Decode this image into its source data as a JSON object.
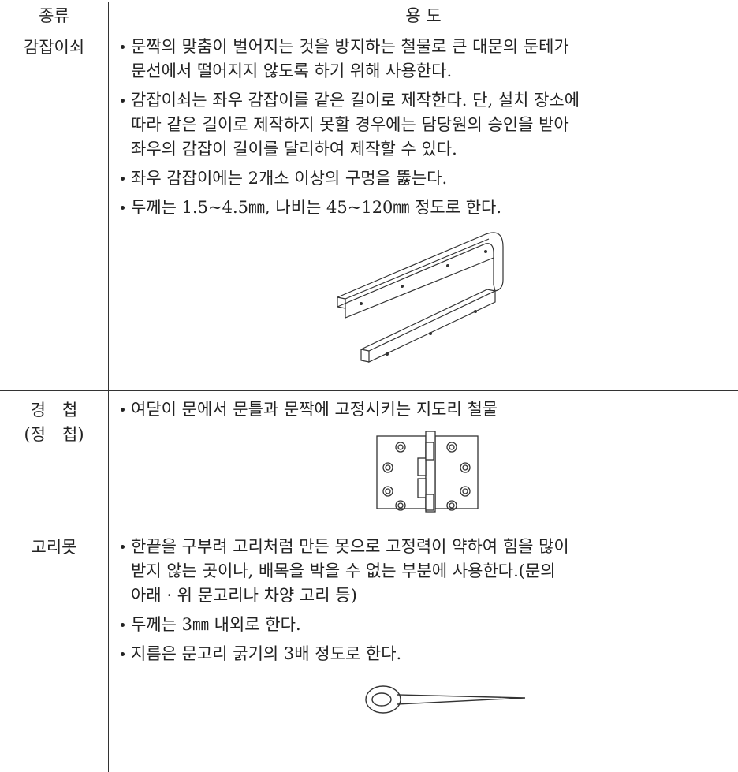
{
  "table": {
    "header": [
      "종류",
      "용 도"
    ],
    "rows": [
      {
        "type": [
          "감잡이쇠"
        ],
        "bullets": [
          [
            "문짝의 맞춤이 벌어지는 것을 방지하는 철물로 큰 대문의 둔테가",
            "문선에서 떨어지지 않도록 하기 위해 사용한다."
          ],
          [
            "감잡이쇠는 좌우 감잡이를 같은 길이로 제작한다. 단, 설치 장소에",
            "따라 같은 길이로 제작하지 못할 경우에는 담당원의 승인을 받아",
            "좌우의 감잡이 길이를 달리하여 제작할 수 있다."
          ],
          [
            "좌우 감잡이에는 2개소 이상의 구멍을 뚫는다."
          ],
          [
            "두께는 1.5~4.5㎜, 나비는 45~120㎜ 정도로 한다."
          ]
        ]
      },
      {
        "type": [
          "경　첩",
          "(정　첩)"
        ],
        "bullets": [
          [
            "여닫이 문에서 문틀과 문짝에 고정시키는 지도리 철물"
          ]
        ]
      },
      {
        "type": [
          "고리못"
        ],
        "bullets": [
          [
            "한끝을 구부려 고리처럼 만든 못으로 고정력이 약하여 힘을 많이",
            "받지 않는 곳이나, 배목을 박을 수 없는 부분에 사용한다.(문의",
            "아래 · 위 문고리나 차양 고리 등)"
          ],
          [
            "두께는 3㎜ 내외로 한다."
          ],
          [
            "지름은 문고리 굵기의 3배 정도로 한다."
          ]
        ]
      }
    ]
  }
}
